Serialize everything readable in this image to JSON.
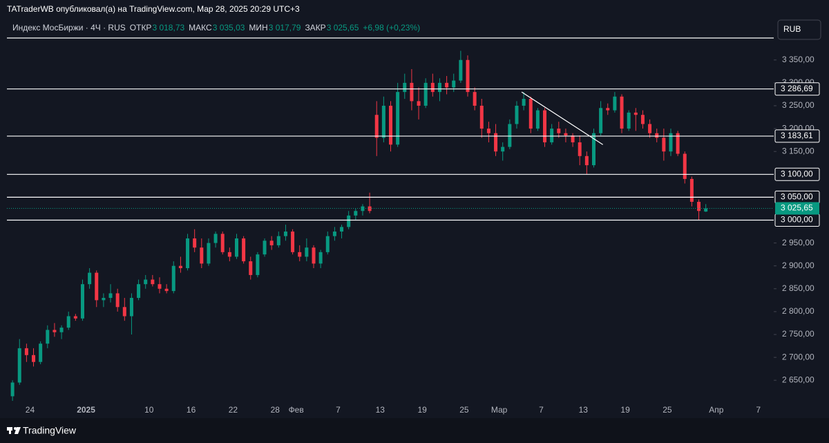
{
  "header": "TATraderWB опубликовал(а) на TradingView.com, Мар 28, 2025 20:29 UTC+3",
  "footer": "TradingView",
  "currency": "RUB",
  "chart_data": {
    "type": "candlestick",
    "legend": {
      "symbol": "Индекс МосБиржи · 4Ч · RUS",
      "open_label": "ОТКР",
      "open": "3 018,73",
      "high_label": "МАКС",
      "high": "3 035,03",
      "low_label": "МИН",
      "low": "3 017,79",
      "close_label": "ЗАКР",
      "close": "3 025,65",
      "change": "+6,98 (+0,23%)"
    },
    "up_color": "#089981",
    "down_color": "#f23645",
    "xlim": [
      -3.3,
      106.2
    ],
    "ylim": [
      2605,
      3398
    ],
    "xticks": [
      {
        "value": 0,
        "label": "24"
      },
      {
        "value": 8,
        "label": "2025"
      },
      {
        "value": 17,
        "label": "10"
      },
      {
        "value": 23,
        "label": "16"
      },
      {
        "value": 29,
        "label": "22"
      },
      {
        "value": 35,
        "label": "28"
      },
      {
        "value": 38,
        "label": "Фев"
      },
      {
        "value": 44,
        "label": "7"
      },
      {
        "value": 50,
        "label": "13"
      },
      {
        "value": 56,
        "label": "19"
      },
      {
        "value": 62,
        "label": "25"
      },
      {
        "value": 67,
        "label": "Мар"
      },
      {
        "value": 73,
        "label": "7"
      },
      {
        "value": 79,
        "label": "13"
      },
      {
        "value": 85,
        "label": "19"
      },
      {
        "value": 91,
        "label": "25"
      },
      {
        "value": 98,
        "label": "Апр"
      },
      {
        "value": 104,
        "label": "7"
      }
    ],
    "yticks": [
      {
        "value": 2650,
        "label": "2 650,00"
      },
      {
        "value": 2700,
        "label": "2 700,00"
      },
      {
        "value": 2750,
        "label": "2 750,00"
      },
      {
        "value": 2800,
        "label": "2 800,00"
      },
      {
        "value": 2850,
        "label": "2 850,00"
      },
      {
        "value": 2900,
        "label": "2 900,00"
      },
      {
        "value": 2950,
        "label": "2 950,00"
      },
      {
        "value": 3150,
        "label": "3 150,00"
      },
      {
        "value": 3200,
        "label": "3 200,00"
      },
      {
        "value": 3250,
        "label": "3 250,00"
      },
      {
        "value": 3300,
        "label": "3 300,00"
      },
      {
        "value": 3350,
        "label": "3 350,00"
      }
    ],
    "levels": [
      {
        "value": 3286.69,
        "label": "3 286,69"
      },
      {
        "value": 3183.61,
        "label": "3 183,61"
      },
      {
        "value": 3100,
        "label": "3 100,00"
      },
      {
        "value": 3050,
        "label": "3 050,00"
      },
      {
        "value": 3000,
        "label": "3 000,00"
      }
    ],
    "last_price": {
      "value": 3025.65,
      "label": "3 025,65"
    },
    "trendline": {
      "x": [
        70.2,
        81.8
      ],
      "y": [
        3280,
        3165
      ]
    },
    "x": [
      -2.5,
      -1.5,
      -0.5,
      0.5,
      1.5,
      2.5,
      3.5,
      4.5,
      5.5,
      6.5,
      7.5,
      8.5,
      9.5,
      10.5,
      11.5,
      12.5,
      13.5,
      14.5,
      15.5,
      16.5,
      17.5,
      18.5,
      19.5,
      20.5,
      21.5,
      22.5,
      23.5,
      24.5,
      25.5,
      26.5,
      27.5,
      28.5,
      29.5,
      30.5,
      31.5,
      32.5,
      33.5,
      34.5,
      35.5,
      36.5,
      37.5,
      38.5,
      39.5,
      40.5,
      41.5,
      42.5,
      43.5,
      44.5,
      45.5,
      46.5,
      47.5,
      48.5,
      49.5,
      50.5,
      51.5,
      52.5,
      53.5,
      54.5,
      55.5,
      56.5,
      57.5,
      58.5,
      59.5,
      60.5,
      61.5,
      62.5,
      63.5,
      64.5,
      65.5,
      66.5,
      67.5,
      68.5,
      69.5,
      70.5,
      71.5,
      72.5,
      73.5,
      74.5,
      75.5,
      76.5,
      77.5,
      78.5,
      79.5,
      80.5,
      81.5,
      82.5,
      83.5,
      84.5,
      85.5,
      86.5,
      87.5,
      88.5,
      89.5,
      90.5,
      91.5,
      92.5,
      93.5,
      94.5,
      95.5,
      96.5
    ],
    "open": [
      2615,
      2645,
      2720,
      2705,
      2690,
      2730,
      2760,
      2755,
      2765,
      2790,
      2785,
      2860,
      2885,
      2825,
      2830,
      2840,
      2810,
      2790,
      2830,
      2860,
      2870,
      2860,
      2850,
      2845,
      2900,
      2895,
      2960,
      2940,
      2905,
      2950,
      2970,
      2930,
      2920,
      2960,
      2910,
      2880,
      2925,
      2955,
      2945,
      2965,
      2975,
      2930,
      2920,
      2940,
      2905,
      2930,
      2965,
      2975,
      2985,
      3010,
      3020,
      3030,
      3230,
      3180,
      3250,
      3165,
      3280,
      3300,
      3260,
      3250,
      3300,
      3280,
      3300,
      3290,
      3305,
      3350,
      3280,
      3250,
      3200,
      3190,
      3150,
      3160,
      3210,
      3250,
      3265,
      3200,
      3240,
      3170,
      3200,
      3190,
      3185,
      3170,
      3140,
      3120,
      3190,
      3245,
      3240,
      3270,
      3200,
      3235,
      3230,
      3210,
      3190,
      3180,
      3150,
      3190,
      3145,
      3090,
      3040,
      3018.73
    ],
    "high": [
      2650,
      2740,
      2730,
      2720,
      2735,
      2770,
      2775,
      2770,
      2800,
      2795,
      2870,
      2895,
      2890,
      2840,
      2860,
      2850,
      2830,
      2840,
      2870,
      2880,
      2880,
      2875,
      2860,
      2910,
      2920,
      2970,
      2980,
      2960,
      2960,
      2975,
      2975,
      2940,
      2970,
      2965,
      2920,
      2930,
      2960,
      2965,
      2975,
      2990,
      2980,
      2945,
      2960,
      2945,
      2935,
      2975,
      2985,
      2990,
      3020,
      3025,
      3035,
      3060,
      3260,
      3270,
      3260,
      3300,
      3320,
      3330,
      3290,
      3310,
      3320,
      3310,
      3315,
      3320,
      3370,
      3360,
      3290,
      3265,
      3215,
      3210,
      3170,
      3220,
      3260,
      3280,
      3270,
      3245,
      3245,
      3210,
      3215,
      3200,
      3190,
      3185,
      3150,
      3200,
      3260,
      3255,
      3280,
      3275,
      3240,
      3245,
      3240,
      3220,
      3200,
      3200,
      3200,
      3195,
      3150,
      3095,
      3045,
      3035.03
    ],
    "low": [
      2605,
      2640,
      2690,
      2680,
      2685,
      2720,
      2745,
      2740,
      2760,
      2780,
      2780,
      2850,
      2810,
      2810,
      2820,
      2800,
      2780,
      2750,
      2825,
      2850,
      2855,
      2840,
      2840,
      2840,
      2885,
      2890,
      2930,
      2895,
      2900,
      2940,
      2925,
      2910,
      2915,
      2905,
      2870,
      2875,
      2920,
      2935,
      2940,
      2955,
      2925,
      2910,
      2910,
      2895,
      2895,
      2925,
      2955,
      2960,
      2980,
      3000,
      3010,
      3015,
      3140,
      3170,
      3150,
      3160,
      3265,
      3240,
      3220,
      3245,
      3270,
      3260,
      3275,
      3280,
      3300,
      3270,
      3240,
      3180,
      3170,
      3140,
      3130,
      3155,
      3200,
      3240,
      3190,
      3195,
      3160,
      3165,
      3180,
      3170,
      3160,
      3120,
      3100,
      3115,
      3185,
      3230,
      3235,
      3190,
      3195,
      3195,
      3200,
      3180,
      3170,
      3130,
      3140,
      3140,
      3080,
      3030,
      3000,
      3017.79
    ],
    "close": [
      2645,
      2720,
      2705,
      2690,
      2730,
      2760,
      2755,
      2765,
      2790,
      2785,
      2860,
      2885,
      2825,
      2830,
      2840,
      2810,
      2790,
      2830,
      2860,
      2870,
      2860,
      2850,
      2845,
      2900,
      2895,
      2960,
      2940,
      2905,
      2950,
      2970,
      2930,
      2920,
      2960,
      2910,
      2880,
      2925,
      2955,
      2945,
      2965,
      2975,
      2930,
      2920,
      2940,
      2905,
      2930,
      2965,
      2975,
      2985,
      3010,
      3020,
      3030,
      3020,
      3180,
      3250,
      3165,
      3280,
      3300,
      3260,
      3250,
      3300,
      3280,
      3300,
      3290,
      3305,
      3350,
      3280,
      3250,
      3200,
      3190,
      3150,
      3160,
      3210,
      3250,
      3265,
      3200,
      3240,
      3170,
      3200,
      3190,
      3185,
      3170,
      3140,
      3120,
      3190,
      3245,
      3240,
      3270,
      3200,
      3235,
      3230,
      3210,
      3190,
      3180,
      3150,
      3190,
      3145,
      3090,
      3040,
      3020,
      3025.65
    ]
  }
}
